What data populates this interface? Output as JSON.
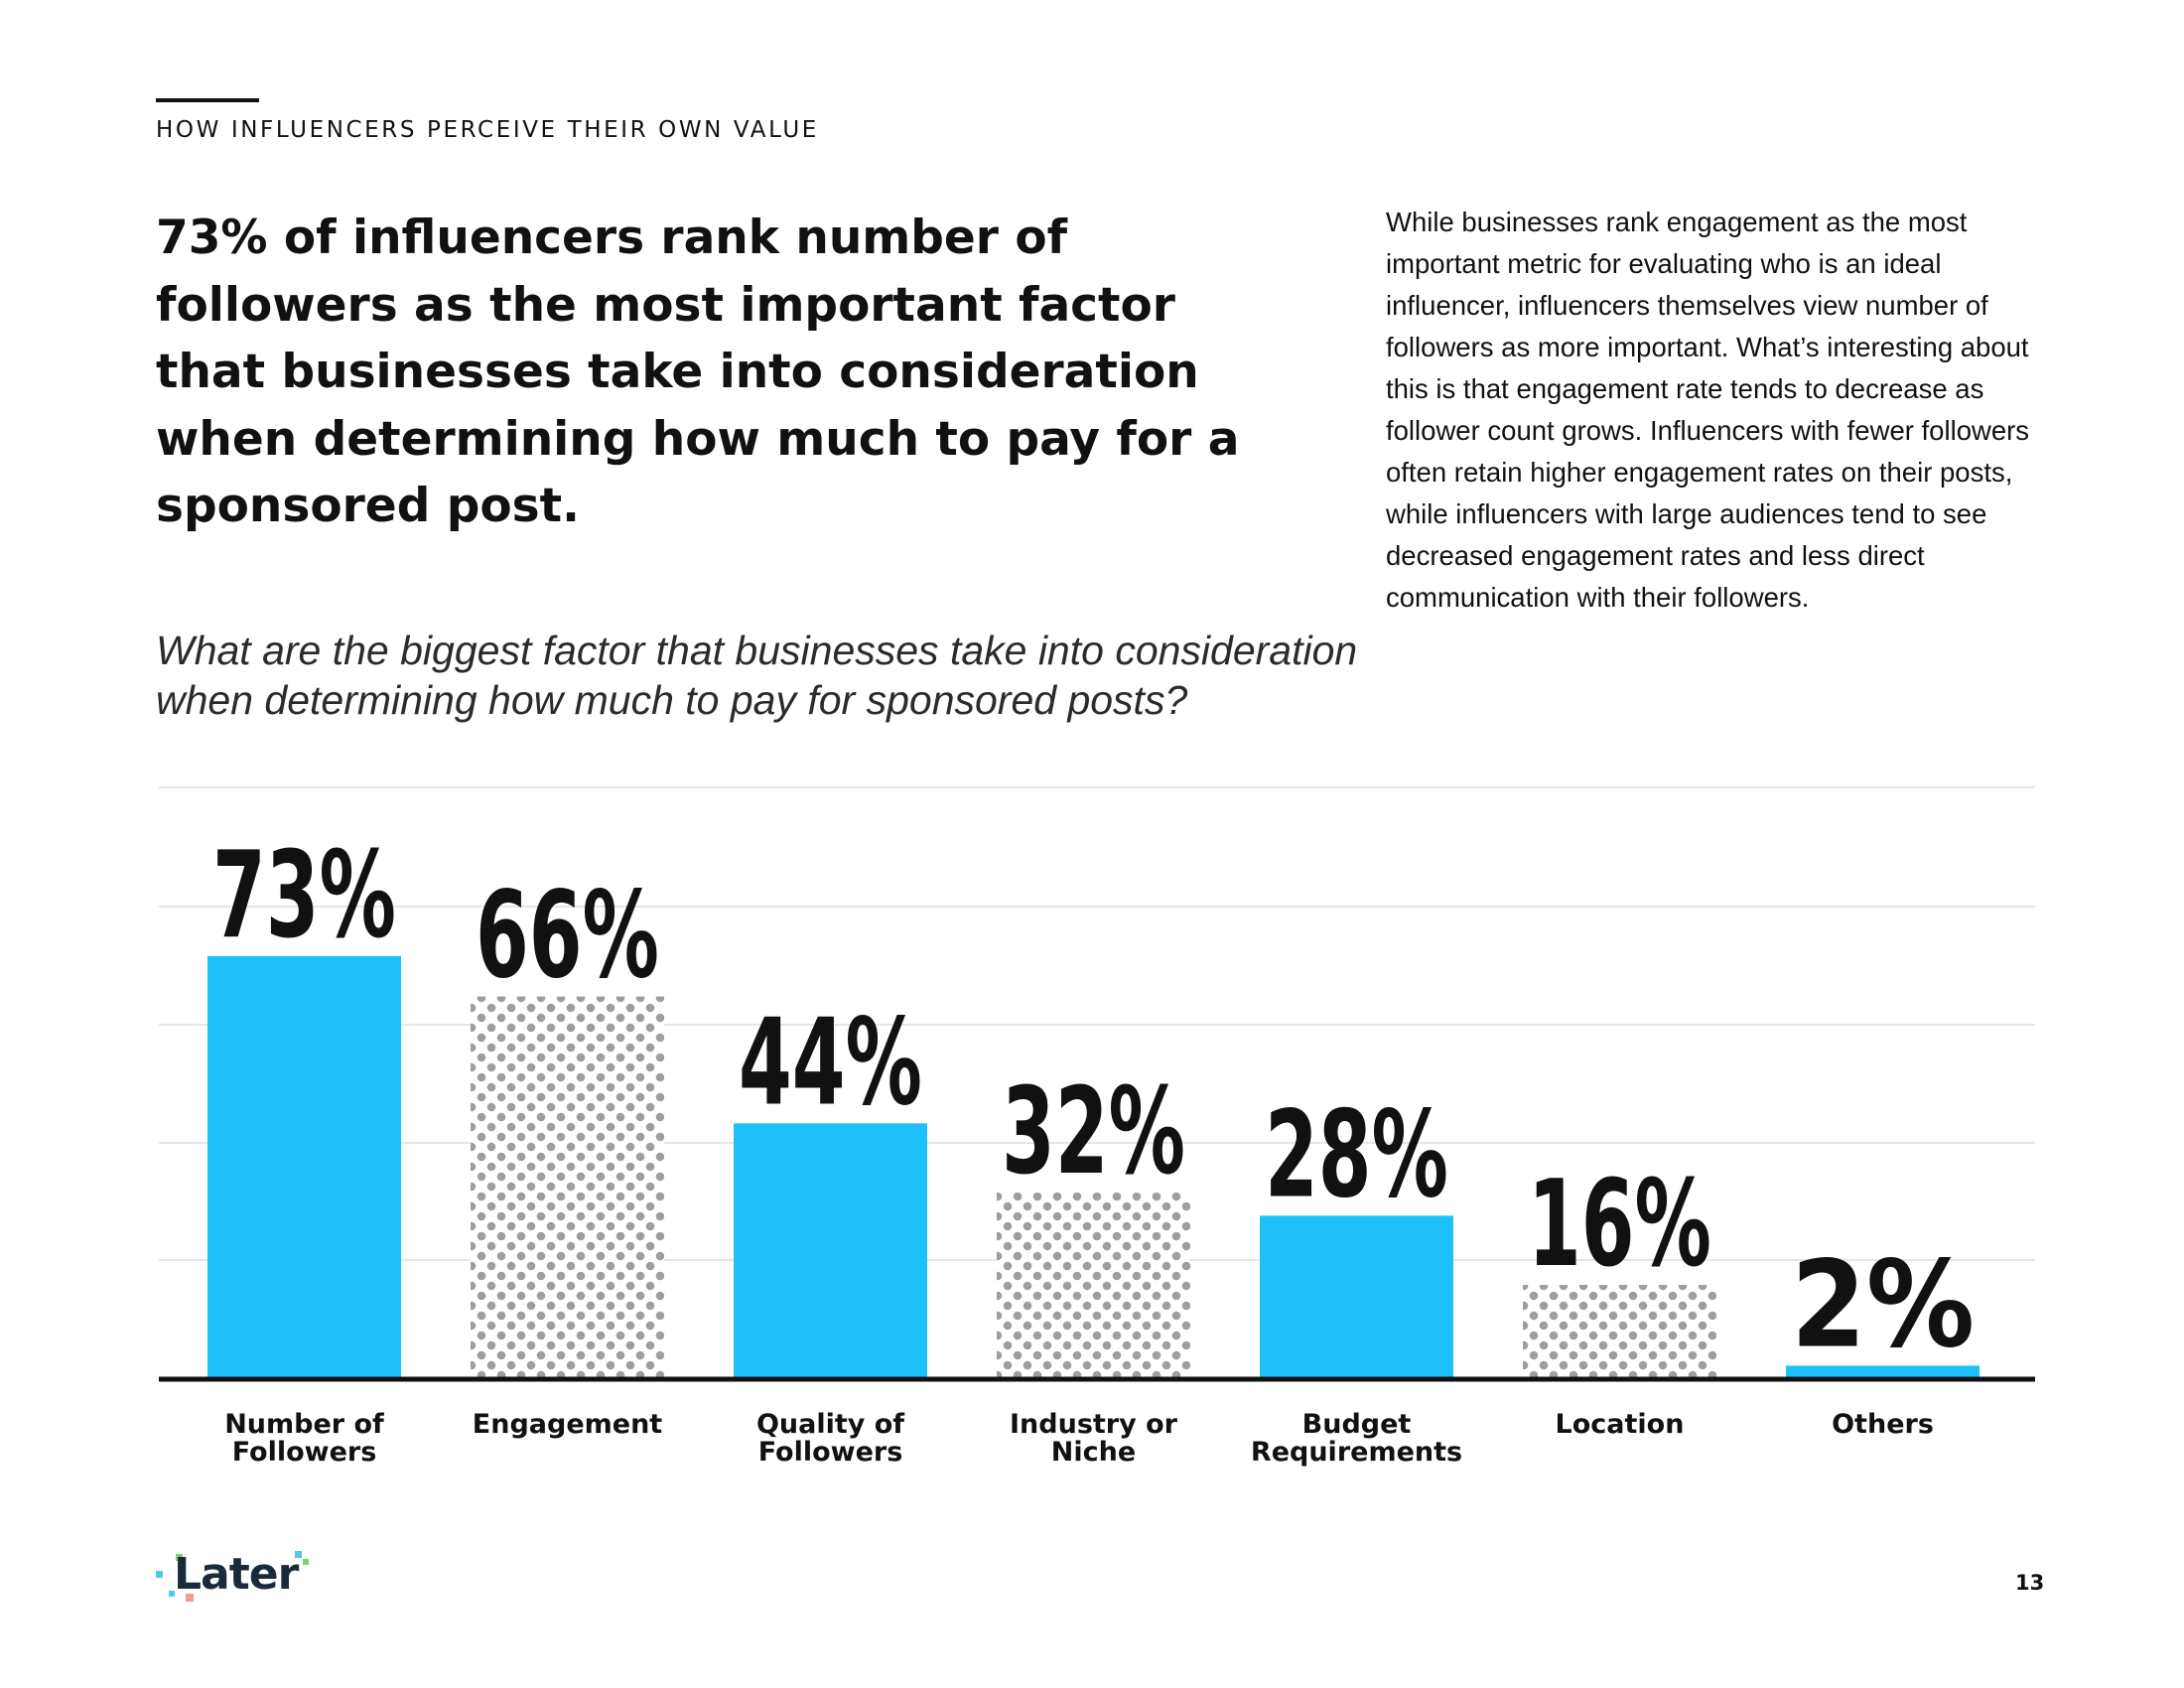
{
  "section_label": "HOW INFLUENCERS PERCEIVE THEIR OWN VALUE",
  "headline": "73% of influencers rank number of followers as the most important factor that businesses take into consideration when determining how much to pay for a sponsored post.",
  "body_text": "While businesses rank engagement as the most important metric for evaluating who is an ideal influencer, influencers themselves view number of followers as more important. What’s interesting about this is that engagement rate tends to decrease as follower count grows. Influencers with fewer followers often retain higher engagement rates on their posts, while influencers with large audiences tend to see decreased engagement rates and less direct communication with their followers.",
  "question": "What are the biggest factor that businesses take into consideration when determining how much to pay for sponsored posts?",
  "chart_data": {
    "type": "bar",
    "title": "What are the biggest factor that businesses take into consideration when determining how much to pay for sponsored posts?",
    "categories": [
      [
        "Number of",
        "Followers"
      ],
      [
        "Engagement"
      ],
      [
        "Quality of",
        "Followers"
      ],
      [
        "Industry or",
        "Niche"
      ],
      [
        "Budget",
        "Requirements"
      ],
      [
        "Location"
      ],
      [
        "Others"
      ]
    ],
    "values": [
      73,
      66,
      44,
      32,
      28,
      16,
      2
    ],
    "value_labels": [
      "73%",
      "66%",
      "44%",
      "32%",
      "28%",
      "16%",
      "2%"
    ],
    "bar_styles": [
      "solid",
      "dotted",
      "solid",
      "dotted",
      "solid",
      "dotted",
      "solid"
    ],
    "ylim": [
      0,
      100
    ],
    "grid": true,
    "xlabel": "",
    "ylabel": ""
  },
  "colors": {
    "bar_solid": "#1ec0f9",
    "bar_dotted_dot": "#9e9e9e",
    "gridline": "#e6e6e6",
    "baseline": "#111111",
    "logo_text": "#1a2a3a"
  },
  "logo": {
    "text": "Later"
  },
  "page_number": "13"
}
